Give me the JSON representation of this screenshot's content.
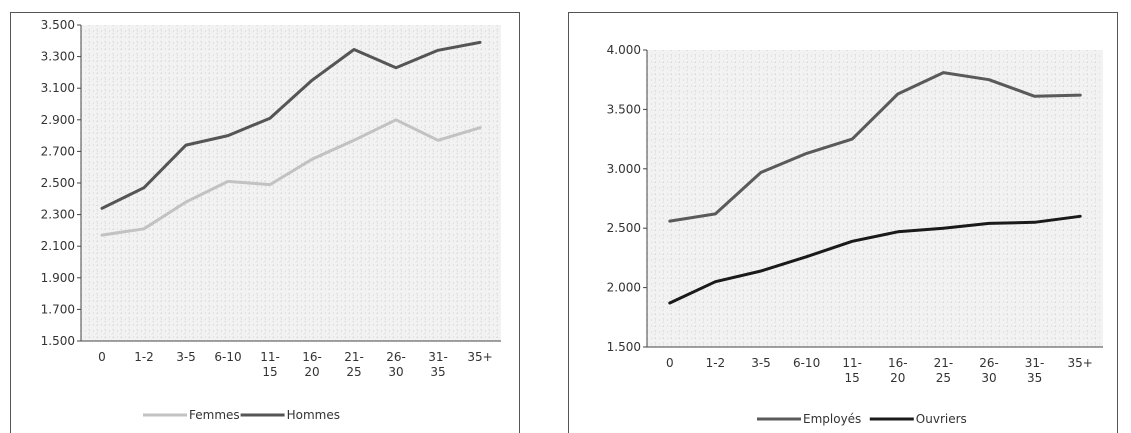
{
  "chart_data": [
    {
      "type": "line",
      "title": "",
      "xlabel": "",
      "ylabel": "",
      "categories": [
        "0",
        "1-2",
        "3-5",
        "6-10",
        "11-15",
        "16-20",
        "21-25",
        "26-30",
        "31-35",
        "35+"
      ],
      "category_lines": [
        [
          "0"
        ],
        [
          "1-2"
        ],
        [
          "3-5"
        ],
        [
          "6-10"
        ],
        [
          "11-",
          "15"
        ],
        [
          "16-",
          "20"
        ],
        [
          "21-",
          "25"
        ],
        [
          "26-",
          "30"
        ],
        [
          "31-",
          "35"
        ],
        [
          "35+"
        ]
      ],
      "ylim": [
        1500,
        3500
      ],
      "yticks": [
        1500,
        1700,
        1900,
        2100,
        2300,
        2500,
        2700,
        2900,
        3100,
        3300,
        3500
      ],
      "ytick_labels": [
        "1.500",
        "1.700",
        "1.900",
        "2.100",
        "2.300",
        "2.500",
        "2.700",
        "2.900",
        "3.100",
        "3.300",
        "3.500"
      ],
      "grid": true,
      "legend_position": "bottom",
      "series": [
        {
          "name": "Femmes",
          "color": "#c2c2c2",
          "values": [
            2170,
            2210,
            2380,
            2510,
            2490,
            2650,
            2770,
            2900,
            2770,
            2850
          ]
        },
        {
          "name": "Hommes",
          "color": "#555555",
          "values": [
            2340,
            2470,
            2740,
            2800,
            2910,
            3150,
            3345,
            3230,
            3340,
            3390
          ]
        }
      ]
    },
    {
      "type": "line",
      "title": "",
      "xlabel": "",
      "ylabel": "",
      "categories": [
        "0",
        "1-2",
        "3-5",
        "6-10",
        "11-15",
        "16-20",
        "21-25",
        "26-30",
        "31-35",
        "35+"
      ],
      "category_lines": [
        [
          "0"
        ],
        [
          "1-2"
        ],
        [
          "3-5"
        ],
        [
          "6-10"
        ],
        [
          "11-",
          "15"
        ],
        [
          "16-",
          "20"
        ],
        [
          "21-",
          "25"
        ],
        [
          "26-",
          "30"
        ],
        [
          "31-",
          "35"
        ],
        [
          "35+"
        ]
      ],
      "ylim": [
        1500,
        4000
      ],
      "yticks": [
        1500,
        2000,
        2500,
        3000,
        3500,
        4000
      ],
      "ytick_labels": [
        "1.500",
        "2.000",
        "2.500",
        "3.000",
        "3.500",
        "4.000"
      ],
      "grid": true,
      "legend_position": "bottom",
      "series": [
        {
          "name": "Employés",
          "color": "#5a5a5a",
          "values": [
            2560,
            2620,
            2970,
            3130,
            3250,
            3630,
            3810,
            3750,
            3610,
            3620
          ]
        },
        {
          "name": "Ouvriers",
          "color": "#1a1a1a",
          "values": [
            1870,
            2050,
            2140,
            2260,
            2390,
            2470,
            2500,
            2540,
            2550,
            2600
          ]
        }
      ]
    }
  ]
}
